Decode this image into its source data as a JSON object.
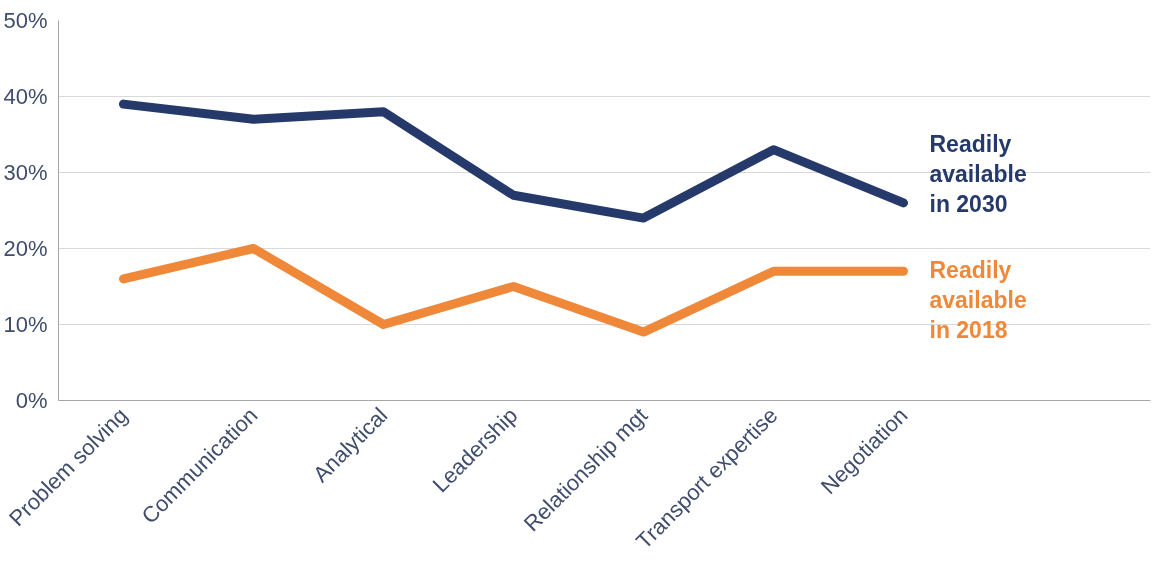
{
  "chart_data": {
    "type": "line",
    "categories": [
      "Problem solving",
      "Communication",
      "Analytical",
      "Leadership",
      "Relationship mgt",
      "Transport expertise",
      "Negotiation"
    ],
    "series": [
      {
        "name": "Readily available in 2030",
        "color": "#253a6b",
        "values": [
          39,
          37,
          38,
          27,
          24,
          33,
          26
        ]
      },
      {
        "name": "Readily available in 2018",
        "color": "#f0883a",
        "values": [
          16,
          20,
          10,
          15,
          9,
          17,
          17
        ]
      }
    ],
    "ylim": [
      0,
      50
    ],
    "yticks": [
      {
        "value": 0,
        "label": "0%"
      },
      {
        "value": 10,
        "label": "10%"
      },
      {
        "value": 20,
        "label": "20%"
      },
      {
        "value": 30,
        "label": "30%"
      },
      {
        "value": 40,
        "label": "40%"
      },
      {
        "value": 50,
        "label": "50%"
      }
    ],
    "grid": "y",
    "legend": false,
    "marker": "none",
    "line_style": "solid"
  }
}
